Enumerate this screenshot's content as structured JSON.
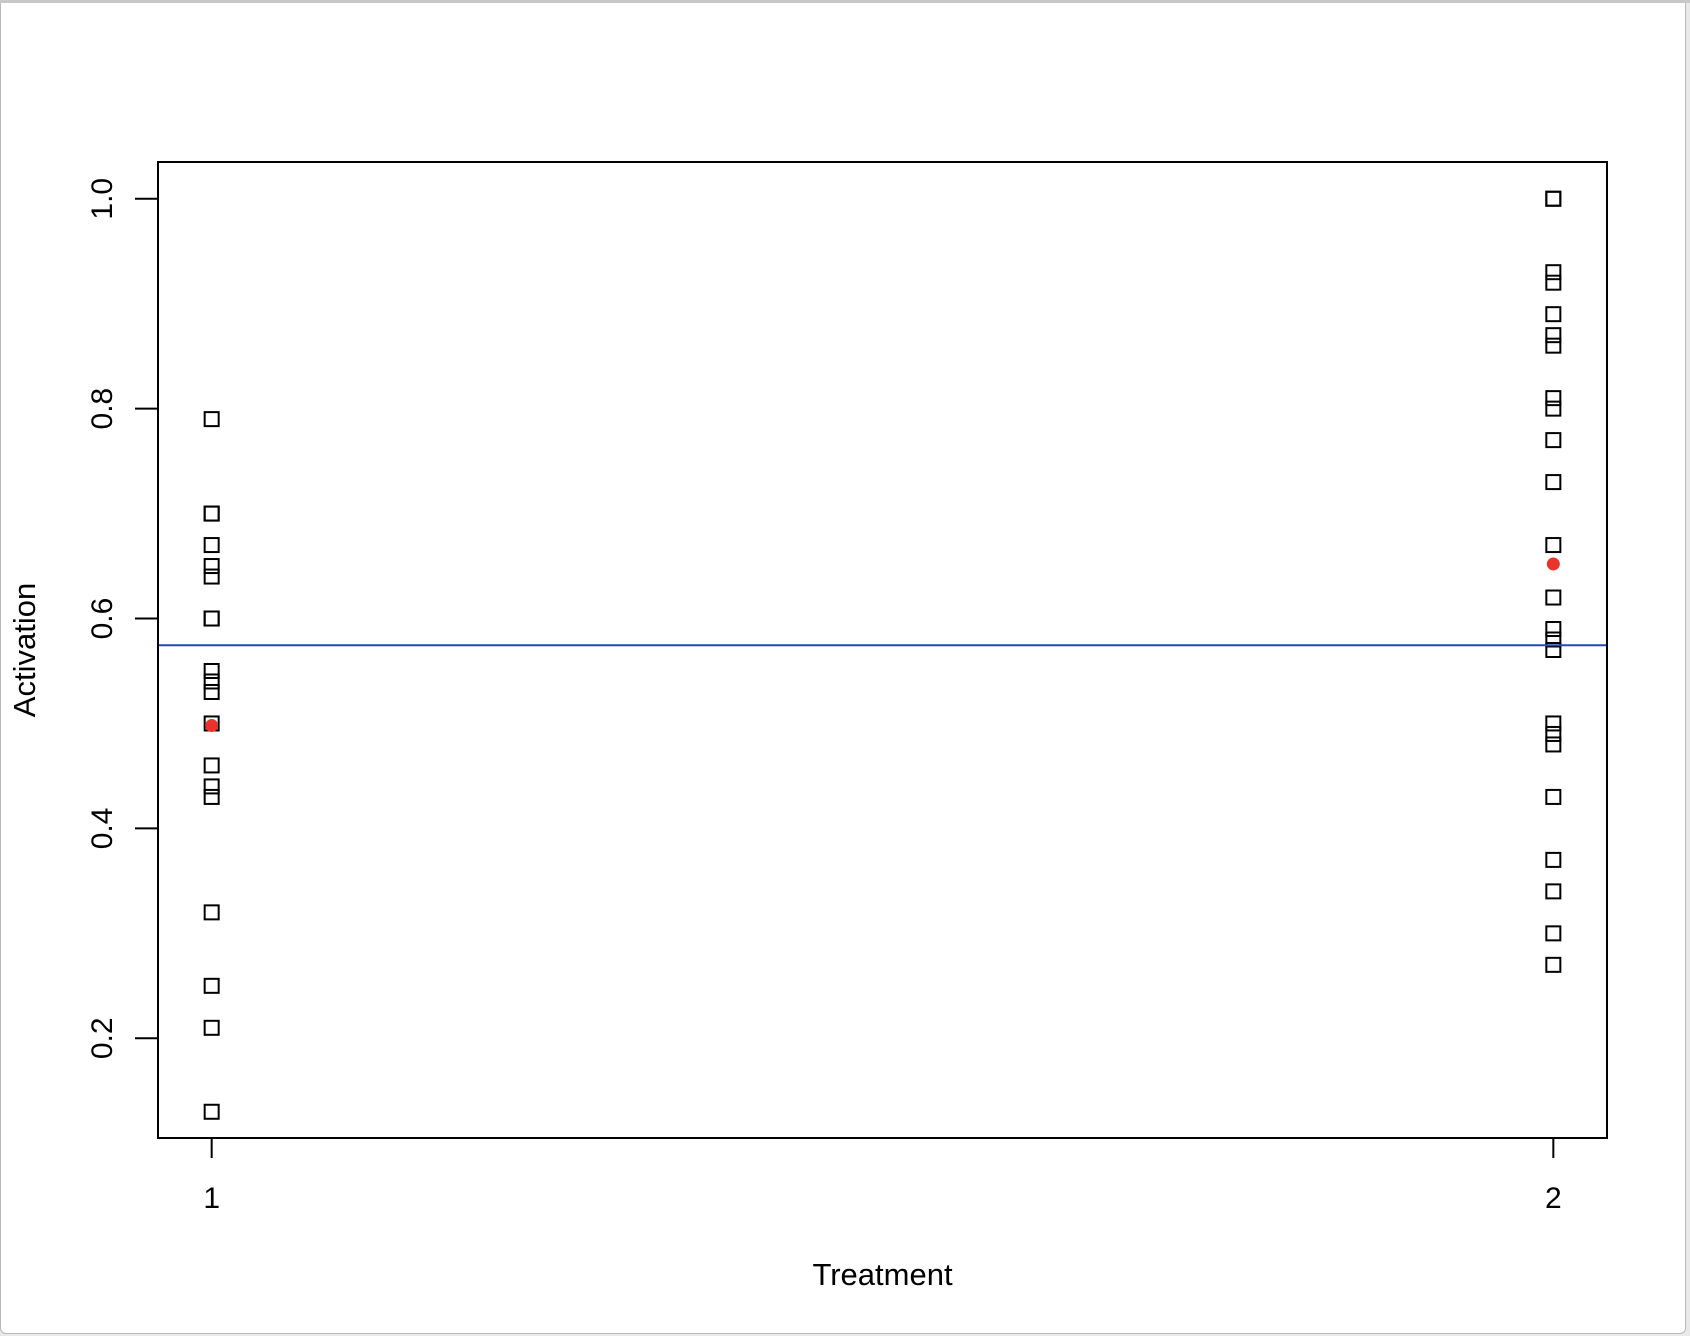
{
  "chart_data": {
    "type": "scatter",
    "xlabel": "Treatment",
    "ylabel": "Activation",
    "xlim": [
      0.96,
      2.04
    ],
    "ylim": [
      0.105,
      1.035
    ],
    "x_ticks": [
      {
        "value": 1,
        "label": "1"
      },
      {
        "value": 2,
        "label": "2"
      }
    ],
    "y_ticks": [
      {
        "value": 0.2,
        "label": "0.2"
      },
      {
        "value": 0.4,
        "label": "0.4"
      },
      {
        "value": 0.6,
        "label": "0.6"
      },
      {
        "value": 0.8,
        "label": "0.8"
      },
      {
        "value": 1.0,
        "label": "1.0"
      }
    ],
    "series": [
      {
        "marker": "open-square",
        "color": "#000000",
        "x": 1,
        "values": [
          0.79,
          0.7,
          0.7,
          0.67,
          0.65,
          0.64,
          0.6,
          0.6,
          0.55,
          0.54,
          0.53,
          0.5,
          0.46,
          0.44,
          0.43,
          0.32,
          0.25,
          0.21,
          0.13
        ]
      },
      {
        "marker": "open-square",
        "color": "#000000",
        "x": 2,
        "values": [
          1.0,
          1.0,
          0.93,
          0.92,
          0.89,
          0.87,
          0.86,
          0.81,
          0.8,
          0.77,
          0.73,
          0.67,
          0.62,
          0.59,
          0.58,
          0.57,
          0.5,
          0.49,
          0.48,
          0.43,
          0.37,
          0.34,
          0.3,
          0.27
        ]
      },
      {
        "marker": "filled-circle",
        "color": "#e8342a",
        "x": [
          1,
          2
        ],
        "values": [
          0.498,
          0.652
        ]
      }
    ],
    "hline": {
      "value": 0.5745,
      "color": "#2746b5"
    }
  }
}
